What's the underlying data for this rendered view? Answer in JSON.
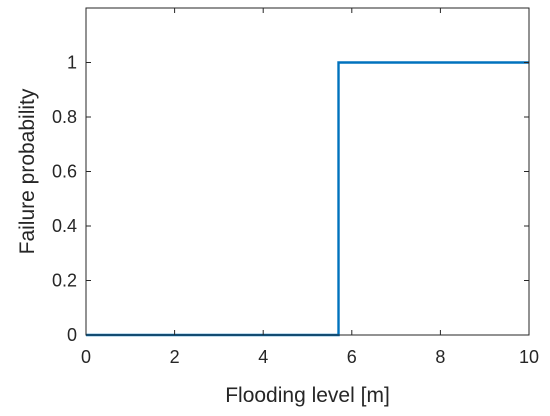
{
  "chart_data": {
    "type": "line",
    "title": "",
    "xlabel": "Flooding level [m]",
    "ylabel": "Failure probability",
    "xlim": [
      0,
      10
    ],
    "ylim": [
      0,
      1.2
    ],
    "x_ticks": [
      0,
      2,
      4,
      6,
      8,
      10
    ],
    "y_ticks": [
      0,
      0.2,
      0.4,
      0.6,
      0.8,
      1
    ],
    "x_tick_labels": [
      "0",
      "2",
      "4",
      "6",
      "8",
      "10"
    ],
    "y_tick_labels": [
      "0",
      "0.2",
      "0.4",
      "0.6",
      "0.8",
      "1"
    ],
    "grid": false,
    "series": [
      {
        "color": "#0072BD",
        "x": [
          0,
          5.7,
          5.7,
          10
        ],
        "y": [
          0,
          0,
          1,
          1
        ]
      }
    ]
  }
}
